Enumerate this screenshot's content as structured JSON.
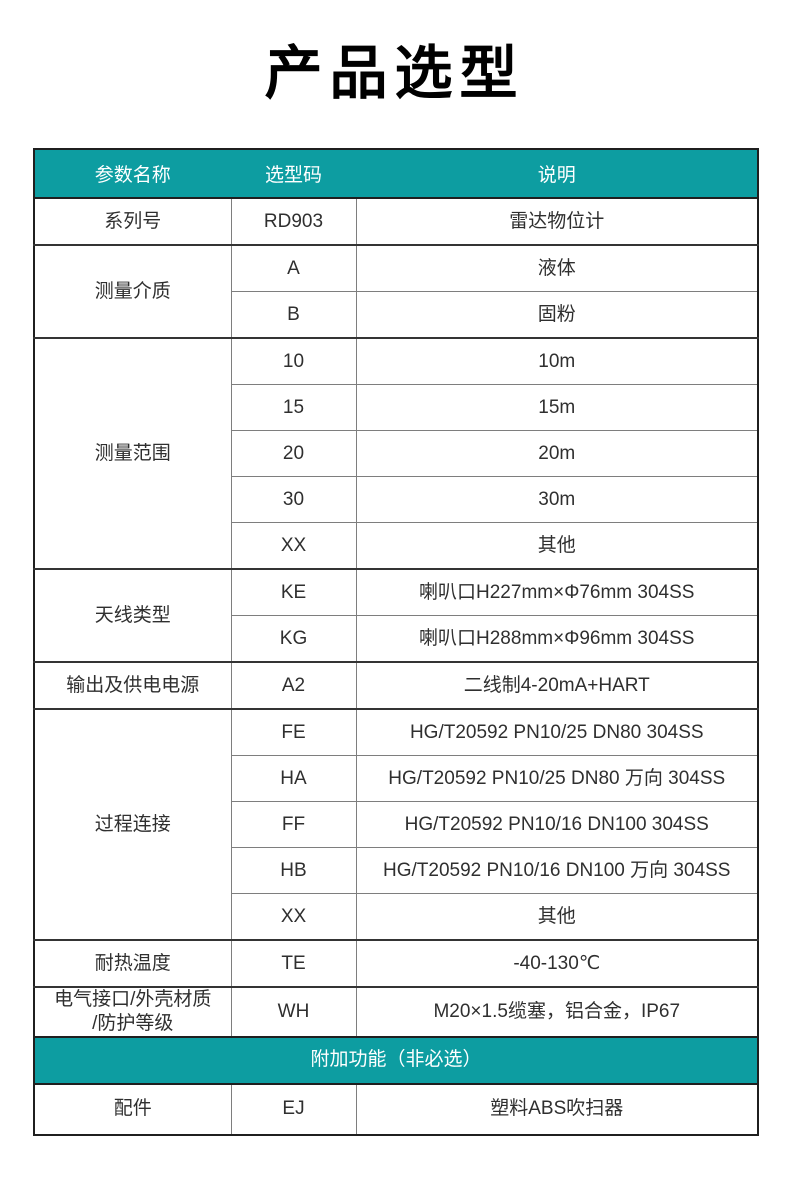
{
  "title": "产品选型",
  "colors": {
    "accent_teal": "#0d9da1",
    "header_text": "#ffffff",
    "body_text": "#2f2f2f",
    "outer_border": "#1f1f1f",
    "inner_border": "#7e7e7e"
  },
  "table": {
    "headers": [
      "参数名称",
      "选型码",
      "说明"
    ],
    "groups": [
      {
        "param": "系列号",
        "rows": [
          {
            "code": "RD903",
            "desc": "雷达物位计"
          }
        ]
      },
      {
        "param": "测量介质",
        "rows": [
          {
            "code": "A",
            "desc": "液体"
          },
          {
            "code": "B",
            "desc": "固粉"
          }
        ]
      },
      {
        "param": "测量范围",
        "rows": [
          {
            "code": "10",
            "desc": "10m"
          },
          {
            "code": "15",
            "desc": "15m"
          },
          {
            "code": "20",
            "desc": "20m"
          },
          {
            "code": "30",
            "desc": "30m"
          },
          {
            "code": "XX",
            "desc": "其他"
          }
        ]
      },
      {
        "param": "天线类型",
        "rows": [
          {
            "code": "KE",
            "desc": "喇叭口H227mm×Φ76mm 304SS"
          },
          {
            "code": "KG",
            "desc": "喇叭口H288mm×Φ96mm 304SS"
          }
        ]
      },
      {
        "param": "输出及供电电源",
        "rows": [
          {
            "code": "A2",
            "desc": "二线制4-20mA+HART"
          }
        ]
      },
      {
        "param": "过程连接",
        "rows": [
          {
            "code": "FE",
            "desc": "HG/T20592 PN10/25 DN80 304SS"
          },
          {
            "code": "HA",
            "desc": "HG/T20592 PN10/25 DN80 万向 304SS"
          },
          {
            "code": "FF",
            "desc": "HG/T20592 PN10/16 DN100 304SS"
          },
          {
            "code": "HB",
            "desc": "HG/T20592 PN10/16 DN100 万向 304SS"
          },
          {
            "code": "XX",
            "desc": "其他"
          }
        ]
      },
      {
        "param": "耐热温度",
        "rows": [
          {
            "code": "TE",
            "desc": "-40-130℃"
          }
        ]
      },
      {
        "param": "电气接口/外壳材质\n/防护等级",
        "rows": [
          {
            "code": "WH",
            "desc": "M20×1.5缆塞，铝合金，IP67"
          }
        ]
      }
    ],
    "banner": "附加功能（非必选）",
    "extra_groups": [
      {
        "param": "配件",
        "rows": [
          {
            "code": "EJ",
            "desc": "塑料ABS吹扫器"
          }
        ]
      }
    ]
  }
}
